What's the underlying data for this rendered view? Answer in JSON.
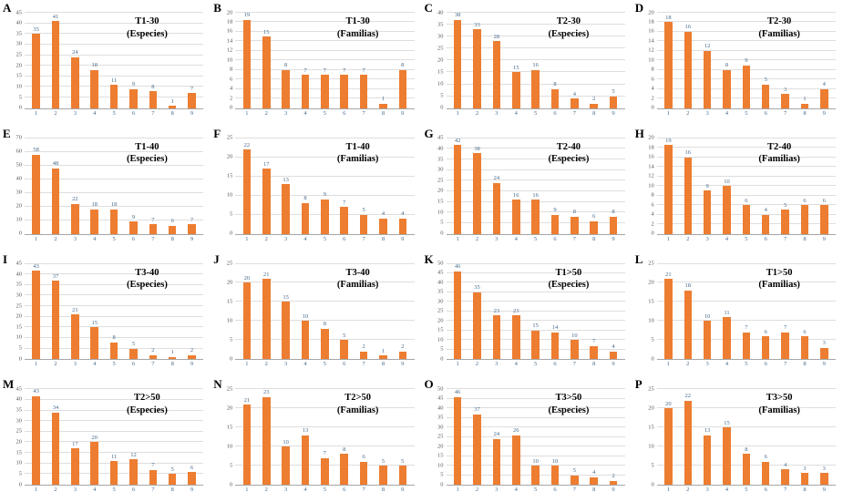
{
  "figure": {
    "description": "Grid of 16 bar charts (panels A-P) of species and families counts",
    "colors": {
      "bar": "#ED7D31",
      "value_label": "#44698a",
      "x_tick_label": "#44698a",
      "y_tick_label": "#595959",
      "gridline": "#dedede",
      "axis_line": "#a6a6a6"
    }
  },
  "chart_data": [
    {
      "panel": "A",
      "type": "bar",
      "title": "T1-30",
      "subtitle": "(Especies)",
      "categories": [
        "1",
        "2",
        "3",
        "4",
        "5",
        "6",
        "7",
        "8",
        "9"
      ],
      "values": [
        35,
        41,
        24,
        18,
        11,
        9,
        8,
        1,
        7
      ],
      "ylim": [
        0,
        45
      ],
      "ytick_step": 5,
      "grid": true,
      "legend": "none"
    },
    {
      "panel": "B",
      "type": "bar",
      "title": "T1-30",
      "subtitle": "(Familias)",
      "categories": [
        "1",
        "2",
        "3",
        "4",
        "5",
        "6",
        "7",
        "8",
        "9"
      ],
      "values": [
        19,
        15,
        8,
        7,
        7,
        7,
        7,
        1,
        8
      ],
      "ylim": [
        0,
        20
      ],
      "ytick_step": 2,
      "grid": true,
      "legend": "none"
    },
    {
      "panel": "C",
      "type": "bar",
      "title": "T2-30",
      "subtitle": "(Especies)",
      "categories": [
        "1",
        "2",
        "3",
        "4",
        "5",
        "6",
        "7",
        "8",
        "9"
      ],
      "values": [
        38,
        33,
        28,
        15,
        16,
        8,
        4,
        2,
        5
      ],
      "ylim": [
        0,
        40
      ],
      "ytick_step": 5,
      "grid": true,
      "legend": "none"
    },
    {
      "panel": "D",
      "type": "bar",
      "title": "T2-30",
      "subtitle": "(Familias)",
      "categories": [
        "1",
        "2",
        "3",
        "4",
        "5",
        "6",
        "7",
        "8",
        "9"
      ],
      "values": [
        18,
        16,
        12,
        8,
        9,
        5,
        3,
        1,
        4
      ],
      "ylim": [
        0,
        20
      ],
      "ytick_step": 2,
      "grid": true,
      "legend": "none"
    },
    {
      "panel": "E",
      "type": "bar",
      "title": "T1-40",
      "subtitle": "(Especies)",
      "categories": [
        "1",
        "2",
        "3",
        "4",
        "5",
        "6",
        "7",
        "8",
        "9"
      ],
      "values": [
        58,
        48,
        22,
        18,
        18,
        9,
        7,
        6,
        7
      ],
      "ylim": [
        0,
        70
      ],
      "ytick_step": 10,
      "grid": true,
      "legend": "none"
    },
    {
      "panel": "F",
      "type": "bar",
      "title": "T1-40",
      "subtitle": "(Familias)",
      "categories": [
        "1",
        "2",
        "3",
        "4",
        "5",
        "6",
        "7",
        "8",
        "9"
      ],
      "values": [
        22,
        17,
        13,
        8,
        9,
        7,
        5,
        4,
        4
      ],
      "ylim": [
        0,
        25
      ],
      "ytick_step": 5,
      "grid": true,
      "legend": "none"
    },
    {
      "panel": "G",
      "type": "bar",
      "title": "T2-40",
      "subtitle": "(Especies)",
      "categories": [
        "1",
        "2",
        "3",
        "4",
        "5",
        "6",
        "7",
        "8",
        "9"
      ],
      "values": [
        42,
        38,
        24,
        16,
        16,
        9,
        8,
        6,
        8
      ],
      "ylim": [
        0,
        45
      ],
      "ytick_step": 5,
      "grid": true,
      "legend": "none"
    },
    {
      "panel": "H",
      "type": "bar",
      "title": "T2-40",
      "subtitle": "(Familias)",
      "categories": [
        "1",
        "2",
        "3",
        "4",
        "5",
        "6",
        "7",
        "8",
        "9"
      ],
      "values": [
        19,
        16,
        9,
        10,
        6,
        4,
        5,
        6,
        6
      ],
      "ylim": [
        0,
        20
      ],
      "ytick_step": 2,
      "grid": true,
      "legend": "none"
    },
    {
      "panel": "I",
      "type": "bar",
      "title": "T3-40",
      "subtitle": "(Especies)",
      "categories": [
        "1",
        "2",
        "3",
        "4",
        "5",
        "6",
        "7",
        "8",
        "9"
      ],
      "values": [
        43,
        37,
        21,
        15,
        8,
        5,
        2,
        1,
        2
      ],
      "ylim": [
        0,
        45
      ],
      "ytick_step": 5,
      "grid": true,
      "legend": "none"
    },
    {
      "panel": "J",
      "type": "bar",
      "title": "T3-40",
      "subtitle": "(Familias)",
      "categories": [
        "1",
        "2",
        "3",
        "4",
        "5",
        "6",
        "7",
        "8",
        "9"
      ],
      "values": [
        20,
        21,
        15,
        10,
        8,
        5,
        2,
        1,
        2
      ],
      "ylim": [
        0,
        25
      ],
      "ytick_step": 5,
      "grid": true,
      "legend": "none"
    },
    {
      "panel": "K",
      "type": "bar",
      "title": "T1>50",
      "subtitle": "(Especies)",
      "categories": [
        "1",
        "2",
        "3",
        "4",
        "5",
        "6",
        "7",
        "8",
        "9"
      ],
      "values": [
        46,
        35,
        23,
        23,
        15,
        14,
        10,
        7,
        4
      ],
      "ylim": [
        0,
        50
      ],
      "ytick_step": 5,
      "grid": true,
      "legend": "none"
    },
    {
      "panel": "L",
      "type": "bar",
      "title": "T1>50",
      "subtitle": "(Familias)",
      "categories": [
        "1",
        "2",
        "3",
        "4",
        "5",
        "6",
        "7",
        "8",
        "9"
      ],
      "values": [
        21,
        18,
        10,
        11,
        7,
        6,
        7,
        6,
        3
      ],
      "ylim": [
        0,
        25
      ],
      "ytick_step": 5,
      "grid": true,
      "legend": "none"
    },
    {
      "panel": "M",
      "type": "bar",
      "title": "T2>50",
      "subtitle": "(Especies)",
      "categories": [
        "1",
        "2",
        "3",
        "4",
        "5",
        "6",
        "7",
        "8",
        "9"
      ],
      "values": [
        43,
        34,
        17,
        20,
        11,
        12,
        7,
        5,
        6
      ],
      "ylim": [
        0,
        45
      ],
      "ytick_step": 5,
      "grid": true,
      "legend": "none"
    },
    {
      "panel": "N",
      "type": "bar",
      "title": "T2>50",
      "subtitle": "(Familias)",
      "categories": [
        "1",
        "2",
        "3",
        "4",
        "5",
        "6",
        "7",
        "8",
        "9"
      ],
      "values": [
        21,
        23,
        10,
        13,
        7,
        8,
        6,
        5,
        5
      ],
      "ylim": [
        0,
        25
      ],
      "ytick_step": 5,
      "grid": true,
      "legend": "none"
    },
    {
      "panel": "O",
      "type": "bar",
      "title": "T3>50",
      "subtitle": "(Especies)",
      "categories": [
        "1",
        "2",
        "3",
        "4",
        "5",
        "6",
        "7",
        "8",
        "9"
      ],
      "values": [
        46,
        37,
        24,
        26,
        10,
        10,
        5,
        4,
        2
      ],
      "ylim": [
        0,
        50
      ],
      "ytick_step": 5,
      "grid": true,
      "legend": "none"
    },
    {
      "panel": "P",
      "type": "bar",
      "title": "T3>50",
      "subtitle": "(Familias)",
      "categories": [
        "1",
        "2",
        "3",
        "4",
        "5",
        "6",
        "7",
        "8",
        "9"
      ],
      "values": [
        20,
        22,
        13,
        15,
        8,
        6,
        4,
        3,
        3
      ],
      "ylim": [
        0,
        25
      ],
      "ytick_step": 5,
      "grid": true,
      "legend": "none"
    }
  ]
}
